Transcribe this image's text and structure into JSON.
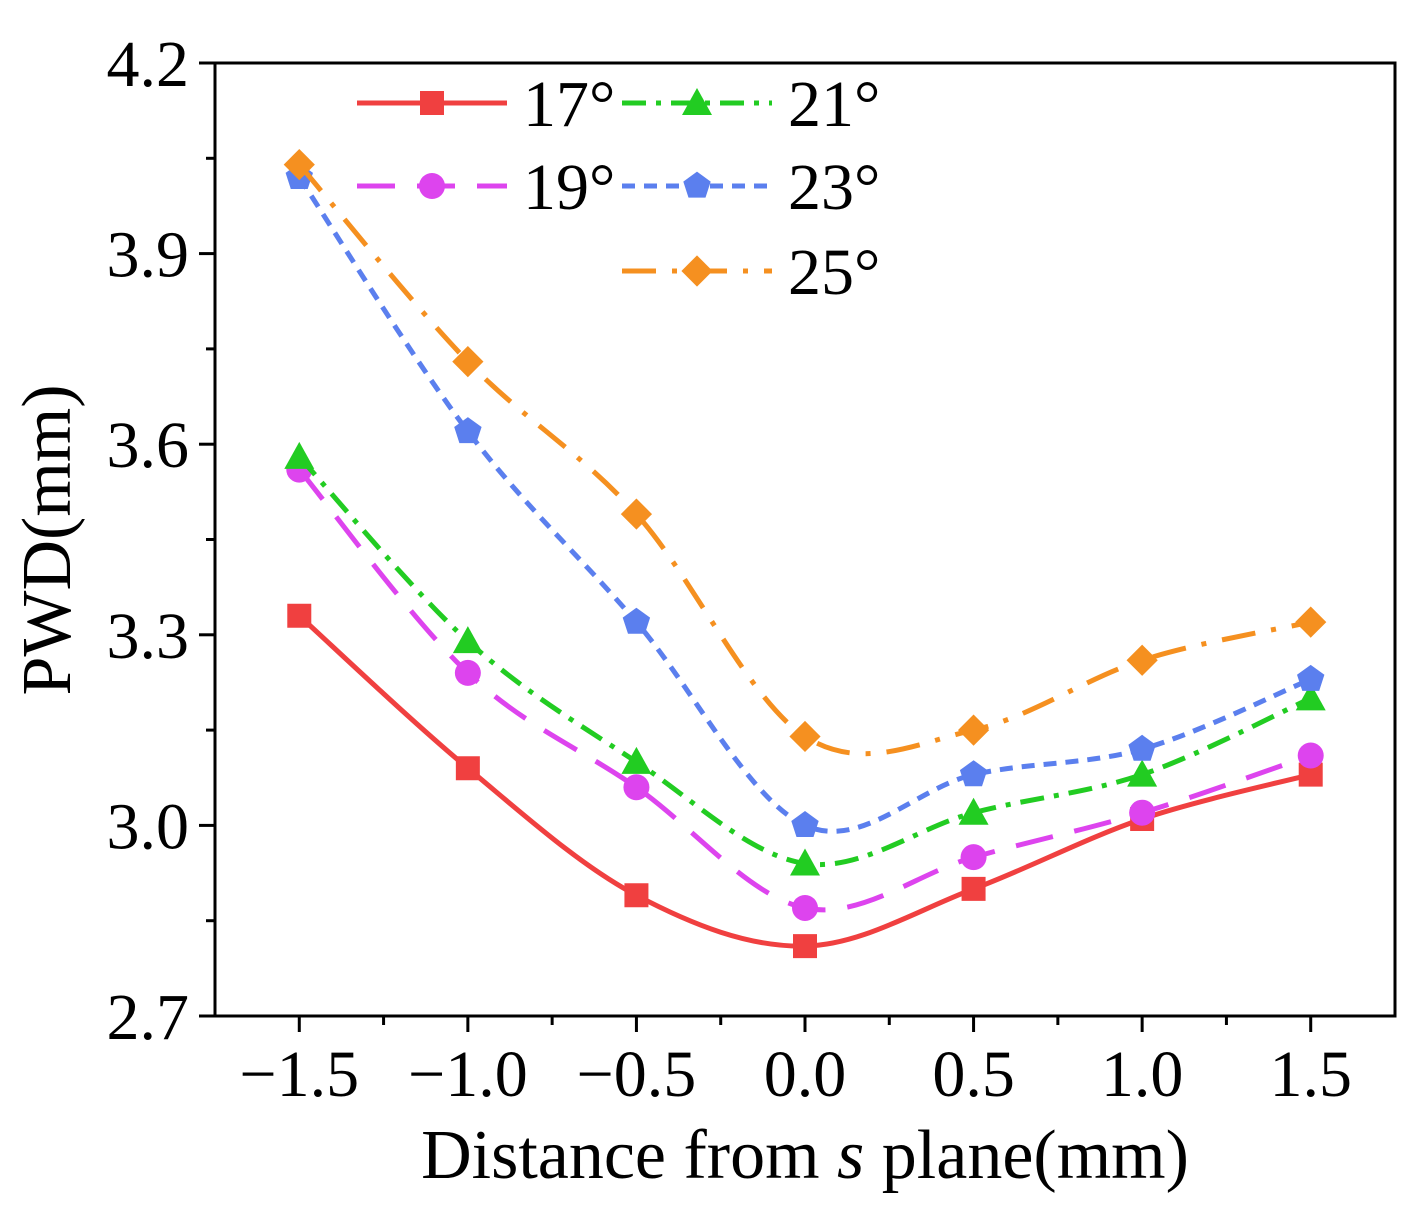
{
  "chart_data": {
    "type": "line",
    "title": "",
    "xlabel": {
      "prefix": "Distance from ",
      "italic": "s",
      "suffix": " plane(mm)"
    },
    "ylabel": "PWD(mm)",
    "xlim": [
      -1.75,
      1.75
    ],
    "ylim": [
      2.7,
      4.2
    ],
    "xticks": [
      -1.5,
      -1.0,
      -0.5,
      0.0,
      0.5,
      1.0,
      1.5
    ],
    "xtick_labels": [
      "−1.5",
      "−1.0",
      "−0.5",
      "0.0",
      "0.5",
      "1.0",
      "1.5"
    ],
    "yticks": [
      2.7,
      3.0,
      3.3,
      3.6,
      3.9,
      4.2
    ],
    "ytick_labels": [
      "2.7",
      "3.0",
      "3.3",
      "3.6",
      "3.9",
      "4.2"
    ],
    "grid": false,
    "legend_position": "top",
    "x": [
      -1.5,
      -1.0,
      -0.5,
      0.0,
      0.5,
      1.0,
      1.5
    ],
    "series": [
      {
        "name": "17°",
        "color": "#f04040",
        "marker": "square",
        "dash": "solid",
        "values": [
          3.33,
          3.09,
          2.89,
          2.81,
          2.9,
          3.01,
          3.08
        ]
      },
      {
        "name": "19°",
        "color": "#dd44ee",
        "marker": "circle",
        "dash": "dash",
        "values": [
          3.56,
          3.24,
          3.06,
          2.87,
          2.95,
          3.02,
          3.11
        ]
      },
      {
        "name": "21°",
        "color": "#22cc22",
        "marker": "triangle",
        "dash": "dashdot",
        "values": [
          3.58,
          3.29,
          3.1,
          2.94,
          3.02,
          3.08,
          3.2
        ]
      },
      {
        "name": "23°",
        "color": "#5b7fee",
        "marker": "pentagon",
        "dash": "shortdash",
        "values": [
          4.02,
          3.62,
          3.32,
          3.0,
          3.08,
          3.12,
          3.23
        ]
      },
      {
        "name": "25°",
        "color": "#f59020",
        "marker": "diamond",
        "dash": "longdashdot",
        "values": [
          4.04,
          3.73,
          3.49,
          3.14,
          3.15,
          3.26,
          3.32
        ]
      }
    ]
  }
}
